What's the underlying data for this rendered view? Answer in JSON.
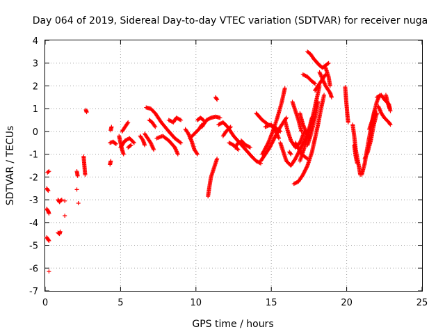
{
  "chart_data": {
    "type": "scatter",
    "title": "Day 064 of 2019, Sidereal Day-to-day VTEC variation (SDTVAR) for receiver nuga",
    "xlabel": "GPS time / hours",
    "ylabel": "SDTVAR / TECUs",
    "xlim": [
      0,
      25
    ],
    "ylim": [
      -7,
      4
    ],
    "xticks": [
      "0",
      "5",
      "10",
      "15",
      "20",
      "25"
    ],
    "yticks": [
      "4",
      "3",
      "2",
      "1",
      "0",
      "-1",
      "-2",
      "-3",
      "-4",
      "-5",
      "-6",
      "-7"
    ],
    "grid": true,
    "marker": "plus",
    "color": "#ff0000",
    "series": [
      {
        "name": "SDTVAR",
        "segments": [
          [
            [
              0.15,
              -1.8
            ],
            [
              0.25,
              -1.75
            ]
          ],
          [
            [
              0.1,
              -2.5
            ],
            [
              0.2,
              -2.6
            ]
          ],
          [
            [
              0.1,
              -3.4
            ],
            [
              0.2,
              -3.5
            ],
            [
              0.25,
              -3.6
            ]
          ],
          [
            [
              0.1,
              -4.65
            ],
            [
              0.2,
              -4.75
            ],
            [
              0.25,
              -4.8
            ]
          ],
          [
            [
              0.25,
              -6.15
            ]
          ],
          [
            [
              0.85,
              -3.0
            ],
            [
              0.95,
              -3.1
            ],
            [
              1.0,
              -3.05
            ],
            [
              1.1,
              -3.0
            ]
          ],
          [
            [
              0.85,
              -4.45
            ],
            [
              0.95,
              -4.5
            ],
            [
              1.0,
              -4.4
            ]
          ],
          [
            [
              1.3,
              -3.05
            ]
          ],
          [
            [
              1.3,
              -3.7
            ]
          ],
          [
            [
              2.1,
              -1.75
            ],
            [
              2.15,
              -1.95
            ]
          ],
          [
            [
              2.1,
              -2.55
            ]
          ],
          [
            [
              2.2,
              -3.15
            ]
          ],
          [
            [
              2.55,
              -1.1
            ],
            [
              2.6,
              -1.5
            ],
            [
              2.65,
              -1.9
            ]
          ],
          [
            [
              2.7,
              0.95
            ],
            [
              2.75,
              0.85
            ]
          ],
          [
            [
              4.3,
              -1.45
            ],
            [
              4.35,
              -1.3
            ]
          ],
          [
            [
              4.35,
              0.05
            ],
            [
              4.4,
              0.2
            ]
          ],
          [
            [
              4.3,
              -0.5
            ],
            [
              4.5,
              -0.45
            ],
            [
              4.7,
              -0.55
            ]
          ],
          [
            [
              4.9,
              -0.2
            ],
            [
              5.0,
              -0.5
            ],
            [
              5.1,
              -0.8
            ],
            [
              5.2,
              -1.0
            ]
          ],
          [
            [
              5.0,
              -0.7
            ],
            [
              5.3,
              -0.4
            ],
            [
              5.6,
              -0.3
            ],
            [
              5.9,
              -0.5
            ]
          ],
          [
            [
              5.1,
              0.0
            ],
            [
              5.3,
              0.2
            ],
            [
              5.5,
              0.4
            ]
          ],
          [
            [
              5.5,
              -0.7
            ],
            [
              5.7,
              -0.6
            ]
          ],
          [
            [
              6.3,
              -0.2
            ],
            [
              6.5,
              -0.4
            ],
            [
              6.6,
              -0.6
            ]
          ],
          [
            [
              6.6,
              -0.1
            ],
            [
              6.8,
              -0.3
            ],
            [
              7.0,
              -0.5
            ],
            [
              7.2,
              -0.8
            ]
          ],
          [
            [
              6.7,
              1.05
            ],
            [
              7.0,
              1.0
            ],
            [
              7.3,
              0.8
            ],
            [
              7.7,
              0.4
            ],
            [
              8.2,
              0.0
            ],
            [
              8.6,
              -0.3
            ],
            [
              9.0,
              -0.5
            ]
          ],
          [
            [
              6.9,
              0.5
            ],
            [
              7.1,
              0.4
            ],
            [
              7.3,
              0.2
            ]
          ],
          [
            [
              7.4,
              -0.3
            ],
            [
              7.8,
              -0.2
            ],
            [
              8.2,
              -0.4
            ],
            [
              8.6,
              -0.7
            ]
          ],
          [
            [
              8.2,
              0.5
            ],
            [
              8.5,
              0.4
            ],
            [
              8.7,
              0.6
            ],
            [
              9.0,
              0.5
            ]
          ],
          [
            [
              8.6,
              -0.7
            ],
            [
              8.8,
              -1.0
            ]
          ],
          [
            [
              9.3,
              0.1
            ],
            [
              9.5,
              -0.1
            ],
            [
              9.7,
              -0.4
            ],
            [
              9.9,
              -0.8
            ],
            [
              10.1,
              -1.0
            ]
          ],
          [
            [
              9.6,
              -0.3
            ],
            [
              9.9,
              -0.1
            ],
            [
              10.2,
              0.1
            ],
            [
              10.4,
              0.3
            ]
          ],
          [
            [
              10.1,
              0.5
            ],
            [
              10.3,
              0.6
            ],
            [
              10.5,
              0.5
            ]
          ],
          [
            [
              10.4,
              0.2
            ],
            [
              10.7,
              0.5
            ],
            [
              11.0,
              0.6
            ],
            [
              11.3,
              0.65
            ],
            [
              11.6,
              0.6
            ]
          ],
          [
            [
              10.8,
              -2.85
            ],
            [
              10.9,
              -2.4
            ],
            [
              11.0,
              -2.0
            ],
            [
              11.2,
              -1.6
            ],
            [
              11.4,
              -1.2
            ]
          ],
          [
            [
              11.3,
              1.5
            ],
            [
              11.4,
              1.4
            ]
          ],
          [
            [
              11.5,
              0.3
            ],
            [
              11.8,
              0.4
            ],
            [
              12.1,
              0.2
            ],
            [
              12.5,
              -0.2
            ],
            [
              12.9,
              -0.5
            ],
            [
              13.3,
              -0.8
            ],
            [
              13.7,
              -1.1
            ],
            [
              14.0,
              -1.3
            ],
            [
              14.3,
              -1.4
            ]
          ],
          [
            [
              11.8,
              -0.2
            ],
            [
              12.0,
              0.0
            ],
            [
              12.3,
              0.2
            ]
          ],
          [
            [
              12.2,
              -0.5
            ],
            [
              12.5,
              -0.6
            ],
            [
              12.8,
              -0.8
            ]
          ],
          [
            [
              12.6,
              -0.7
            ],
            [
              12.8,
              -0.5
            ]
          ],
          [
            [
              13.0,
              -0.4
            ],
            [
              13.3,
              -0.6
            ],
            [
              13.6,
              -0.7
            ]
          ],
          [
            [
              14.3,
              -1.3
            ],
            [
              14.6,
              -1.0
            ],
            [
              14.9,
              -0.7
            ],
            [
              15.2,
              -0.3
            ],
            [
              15.6,
              0.2
            ],
            [
              16.0,
              0.6
            ]
          ],
          [
            [
              14.4,
              -1.0
            ],
            [
              14.8,
              -0.5
            ],
            [
              15.1,
              0.0
            ],
            [
              15.4,
              0.6
            ],
            [
              15.7,
              1.3
            ],
            [
              15.9,
              1.9
            ]
          ],
          [
            [
              14.0,
              0.8
            ],
            [
              14.4,
              0.5
            ],
            [
              14.8,
              0.3
            ],
            [
              15.2,
              0.2
            ],
            [
              15.6,
              0.0
            ]
          ],
          [
            [
              14.6,
              0.2
            ],
            [
              15.0,
              0.3
            ],
            [
              15.3,
              0.0
            ],
            [
              15.5,
              -0.3
            ]
          ],
          [
            [
              15.6,
              -0.5
            ],
            [
              15.8,
              -0.9
            ],
            [
              16.0,
              -1.3
            ],
            [
              16.3,
              -1.5
            ],
            [
              16.6,
              -1.2
            ],
            [
              16.9,
              -0.8
            ],
            [
              17.2,
              -0.4
            ],
            [
              17.5,
              0.1
            ],
            [
              17.7,
              0.6
            ]
          ],
          [
            [
              15.9,
              0.5
            ],
            [
              16.1,
              0.0
            ],
            [
              16.3,
              -0.4
            ],
            [
              16.6,
              -0.7
            ],
            [
              16.9,
              -0.5
            ],
            [
              17.2,
              0.0
            ]
          ],
          [
            [
              16.2,
              -0.9
            ],
            [
              16.3,
              -1.0
            ]
          ],
          [
            [
              16.4,
              1.3
            ],
            [
              16.6,
              0.9
            ],
            [
              16.8,
              0.5
            ],
            [
              17.0,
              0.0
            ]
          ],
          [
            [
              16.6,
              -0.5
            ],
            [
              17.0,
              -1.0
            ],
            [
              17.4,
              -1.2
            ]
          ],
          [
            [
              16.5,
              -2.3
            ],
            [
              16.8,
              -2.2
            ],
            [
              17.1,
              -1.9
            ],
            [
              17.4,
              -1.5
            ],
            [
              17.7,
              -0.9
            ],
            [
              17.9,
              -0.3
            ],
            [
              18.1,
              0.3
            ],
            [
              18.3,
              1.0
            ],
            [
              18.5,
              1.6
            ]
          ],
          [
            [
              16.9,
              -1.3
            ],
            [
              17.2,
              -0.7
            ],
            [
              17.5,
              0.0
            ],
            [
              17.8,
              0.8
            ],
            [
              18.0,
              1.4
            ],
            [
              18.2,
              2.0
            ]
          ],
          [
            [
              17.4,
              -0.6
            ],
            [
              17.6,
              -0.2
            ],
            [
              17.9,
              0.6
            ],
            [
              18.1,
              1.3
            ]
          ],
          [
            [
              16.9,
              0.8
            ],
            [
              17.1,
              0.3
            ],
            [
              17.3,
              0.0
            ],
            [
              17.5,
              -0.3
            ]
          ],
          [
            [
              17.1,
              2.5
            ],
            [
              17.4,
              2.4
            ],
            [
              17.7,
              2.2
            ],
            [
              17.9,
              2.1
            ]
          ],
          [
            [
              17.4,
              3.5
            ],
            [
              17.6,
              3.4
            ],
            [
              17.8,
              3.2
            ],
            [
              18.0,
              3.05
            ],
            [
              18.2,
              2.9
            ],
            [
              18.4,
              2.8
            ],
            [
              18.6,
              2.9
            ],
            [
              18.8,
              3.0
            ]
          ],
          [
            [
              17.9,
              1.8
            ],
            [
              18.2,
              2.1
            ],
            [
              18.4,
              2.3
            ],
            [
              18.6,
              2.5
            ]
          ],
          [
            [
              18.2,
              2.6
            ],
            [
              18.4,
              2.3
            ],
            [
              18.6,
              2.0
            ],
            [
              18.9,
              1.7
            ],
            [
              19.0,
              1.5
            ]
          ],
          [
            [
              18.6,
              2.8
            ],
            [
              18.8,
              2.4
            ],
            [
              18.9,
              2.0
            ]
          ],
          [
            [
              19.9,
              1.95
            ],
            [
              19.95,
              1.5
            ],
            [
              20.0,
              1.1
            ],
            [
              20.05,
              0.7
            ],
            [
              20.1,
              0.4
            ]
          ],
          [
            [
              20.4,
              0.3
            ],
            [
              20.5,
              -0.2
            ],
            [
              20.6,
              -0.8
            ],
            [
              20.8,
              -1.5
            ],
            [
              20.9,
              -1.9
            ]
          ],
          [
            [
              20.5,
              -0.6
            ],
            [
              20.6,
              -1.1
            ],
            [
              20.7,
              -1.4
            ]
          ],
          [
            [
              21.0,
              -1.9
            ],
            [
              21.2,
              -1.4
            ],
            [
              21.4,
              -0.6
            ],
            [
              21.6,
              0.1
            ],
            [
              21.8,
              0.8
            ],
            [
              22.0,
              1.3
            ],
            [
              22.2,
              1.6
            ]
          ],
          [
            [
              21.2,
              -1.2
            ],
            [
              21.4,
              -0.9
            ],
            [
              21.6,
              -0.4
            ],
            [
              21.8,
              0.3
            ],
            [
              22.0,
              0.8
            ]
          ],
          [
            [
              21.5,
              0.1
            ],
            [
              21.7,
              0.5
            ],
            [
              21.9,
              0.9
            ]
          ],
          [
            [
              22.0,
              1.5
            ],
            [
              22.3,
              1.6
            ],
            [
              22.5,
              1.4
            ],
            [
              22.8,
              1.2
            ],
            [
              22.9,
              0.9
            ]
          ],
          [
            [
              22.1,
              1.1
            ],
            [
              22.3,
              0.8
            ],
            [
              22.5,
              0.6
            ],
            [
              22.8,
              0.4
            ],
            [
              22.9,
              0.3
            ]
          ],
          [
            [
              22.6,
              1.6
            ],
            [
              22.7,
              1.3
            ],
            [
              22.85,
              1.0
            ]
          ]
        ]
      }
    ]
  }
}
